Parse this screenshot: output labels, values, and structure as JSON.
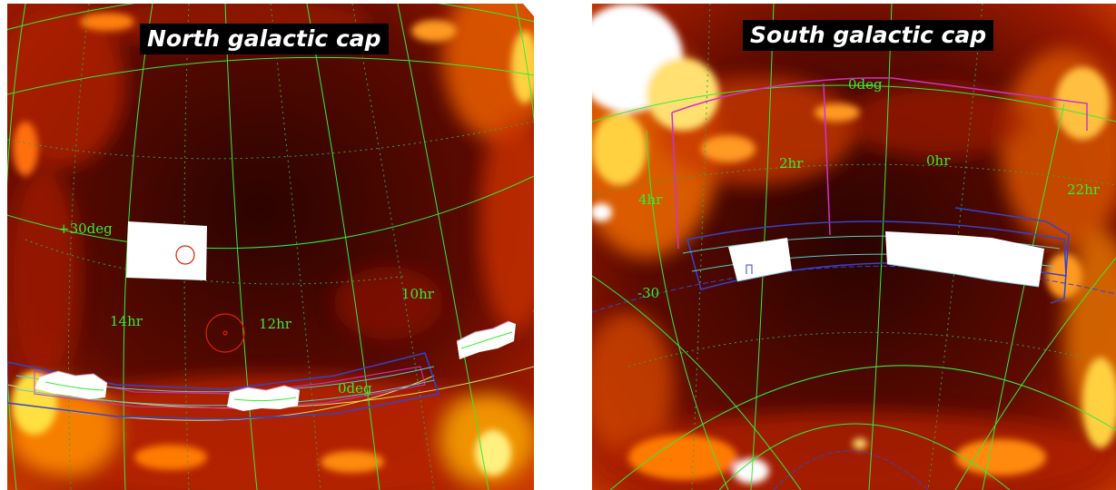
{
  "panels": {
    "north": {
      "title": "North galactic cap",
      "labels": {
        "dec_30": "+30deg",
        "ra_14": "14hr",
        "ra_12": "12hr",
        "ra_10": "10hr",
        "dec_0": "0deg"
      }
    },
    "south": {
      "title": "South galactic cap",
      "labels": {
        "dec_0": "0deg",
        "ra_2": "2hr",
        "ra_0": "0hr",
        "ra_4": "4hr",
        "ra_22": "22hr",
        "dec_m30": "-30"
      }
    }
  },
  "colors": {
    "background_dark": "#3a0500",
    "dust_bright": "#ffcc22",
    "grid_green": "#33ee33",
    "grid_yellow": "#dddd66",
    "footprint_blue": "#3344cc",
    "footprint_magenta": "#cc33cc",
    "footprint_cyan": "#55cccc",
    "survey_white": "#ffffff",
    "marker_red": "#dd2200",
    "title_background": "#000000",
    "title_text": "#ffffff"
  }
}
